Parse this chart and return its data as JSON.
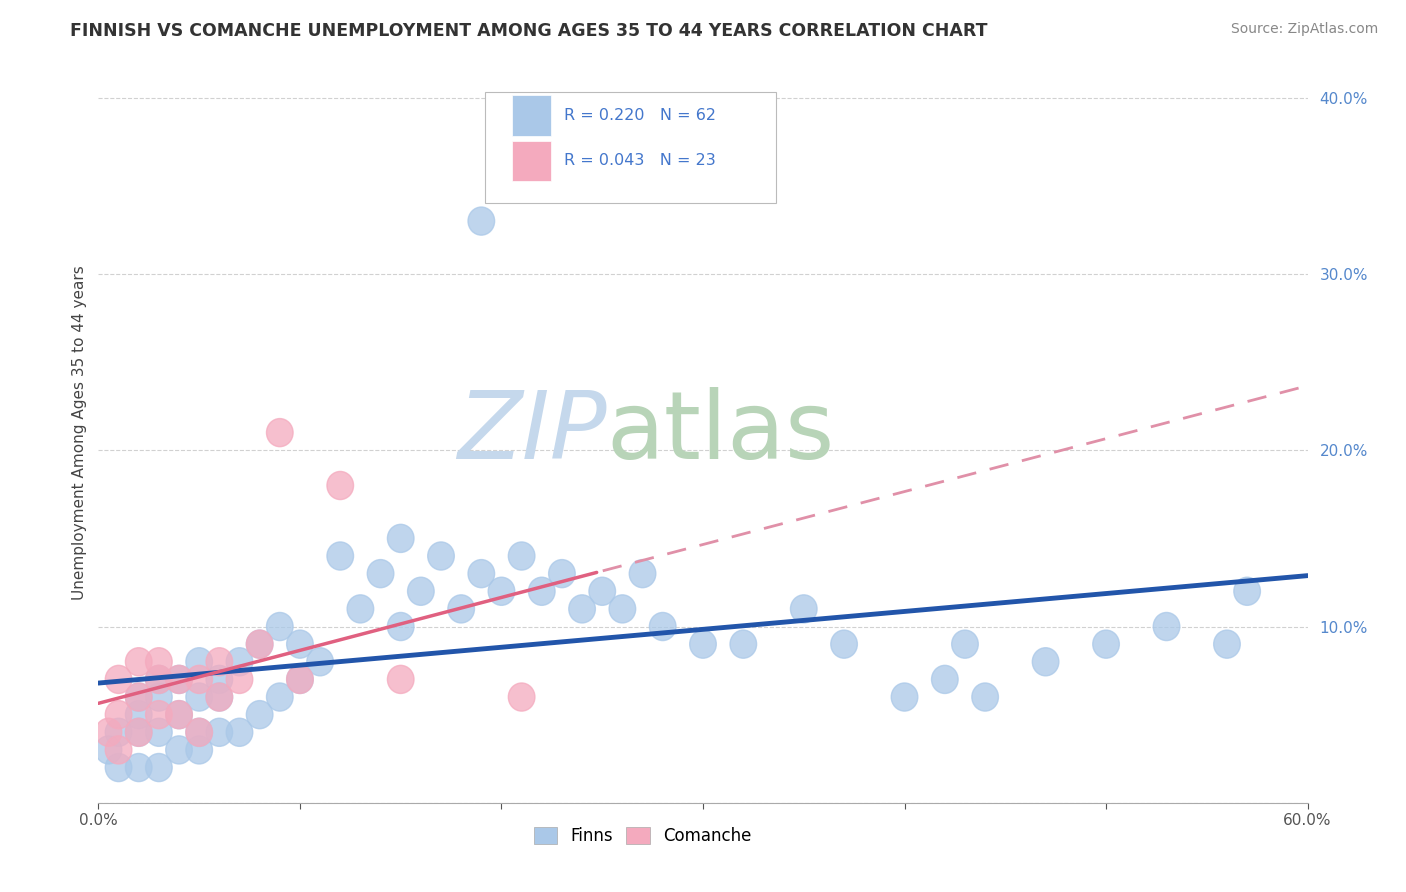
{
  "title": "FINNISH VS COMANCHE UNEMPLOYMENT AMONG AGES 35 TO 44 YEARS CORRELATION CHART",
  "source": "Source: ZipAtlas.com",
  "ylabel": "Unemployment Among Ages 35 to 44 years",
  "xlim": [
    0.0,
    0.6
  ],
  "ylim": [
    0.0,
    0.42
  ],
  "xtick_vals": [
    0.0,
    0.1,
    0.2,
    0.3,
    0.4,
    0.5,
    0.6
  ],
  "ytick_vals": [
    0.0,
    0.1,
    0.2,
    0.3,
    0.4
  ],
  "xtick_labels": [
    "0.0%",
    "",
    "",
    "",
    "",
    "",
    "60.0%"
  ],
  "ytick_labels": [
    "",
    "10.0%",
    "20.0%",
    "30.0%",
    "40.0%"
  ],
  "legend_r_finns": "R = 0.220",
  "legend_n_finns": "N = 62",
  "legend_r_comanche": "R = 0.043",
  "legend_n_comanche": "N = 23",
  "finns_color": "#aac8e8",
  "comanche_color": "#f4aabe",
  "finns_line_color": "#2255aa",
  "comanche_line_solid_color": "#e06080",
  "comanche_line_dash_color": "#e090a8",
  "background_color": "#ffffff",
  "watermark_zip_color": "#c8d8e8",
  "watermark_atlas_color": "#c8d8c0",
  "finns_x": [
    0.005,
    0.01,
    0.01,
    0.02,
    0.02,
    0.02,
    0.02,
    0.03,
    0.03,
    0.03,
    0.03,
    0.04,
    0.04,
    0.04,
    0.05,
    0.05,
    0.05,
    0.05,
    0.06,
    0.06,
    0.06,
    0.07,
    0.07,
    0.08,
    0.08,
    0.09,
    0.09,
    0.1,
    0.1,
    0.11,
    0.12,
    0.13,
    0.14,
    0.15,
    0.15,
    0.16,
    0.17,
    0.18,
    0.19,
    0.2,
    0.21,
    0.22,
    0.23,
    0.24,
    0.25,
    0.26,
    0.27,
    0.28,
    0.3,
    0.32,
    0.35,
    0.37,
    0.4,
    0.42,
    0.43,
    0.44,
    0.47,
    0.5,
    0.53,
    0.56,
    0.19,
    0.57
  ],
  "finns_y": [
    0.03,
    0.02,
    0.04,
    0.02,
    0.04,
    0.05,
    0.06,
    0.02,
    0.04,
    0.06,
    0.07,
    0.03,
    0.05,
    0.07,
    0.03,
    0.04,
    0.06,
    0.08,
    0.04,
    0.06,
    0.07,
    0.04,
    0.08,
    0.05,
    0.09,
    0.06,
    0.1,
    0.07,
    0.09,
    0.08,
    0.14,
    0.11,
    0.13,
    0.1,
    0.15,
    0.12,
    0.14,
    0.11,
    0.13,
    0.12,
    0.14,
    0.12,
    0.13,
    0.11,
    0.12,
    0.11,
    0.13,
    0.1,
    0.09,
    0.09,
    0.11,
    0.09,
    0.06,
    0.07,
    0.09,
    0.06,
    0.08,
    0.09,
    0.1,
    0.09,
    0.33,
    0.12
  ],
  "comanche_x": [
    0.005,
    0.01,
    0.01,
    0.01,
    0.02,
    0.02,
    0.02,
    0.03,
    0.03,
    0.03,
    0.04,
    0.04,
    0.05,
    0.05,
    0.06,
    0.06,
    0.07,
    0.08,
    0.09,
    0.1,
    0.12,
    0.15,
    0.21
  ],
  "comanche_y": [
    0.04,
    0.03,
    0.05,
    0.07,
    0.04,
    0.06,
    0.08,
    0.05,
    0.07,
    0.08,
    0.05,
    0.07,
    0.04,
    0.07,
    0.06,
    0.08,
    0.07,
    0.09,
    0.21,
    0.07,
    0.18,
    0.07,
    0.06
  ]
}
